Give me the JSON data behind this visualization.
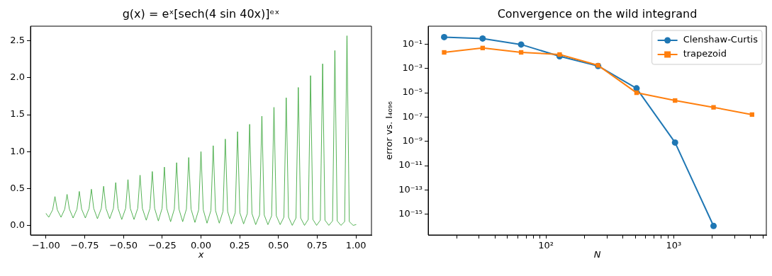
{
  "chart_data": [
    {
      "type": "line",
      "title": "g(x) = eˣ[sech(4 sin 40x)]ᵉˣ",
      "xlabel": "x",
      "xlim": [
        -1.1,
        1.1
      ],
      "ylim": [
        -0.13,
        2.7
      ],
      "xticks": [
        {
          "value": -1,
          "label": "−1.00"
        },
        {
          "value": -0.75,
          "label": "−0.75"
        },
        {
          "value": -0.5,
          "label": "−0.50"
        },
        {
          "value": -0.25,
          "label": "−0.25"
        },
        {
          "value": 0,
          "label": "0.00"
        },
        {
          "value": 0.25,
          "label": "0.25"
        },
        {
          "value": 0.5,
          "label": "0.50"
        },
        {
          "value": 0.75,
          "label": "0.75"
        },
        {
          "value": 1,
          "label": "1.00"
        }
      ],
      "yticks": [
        {
          "value": 0,
          "label": "0.0"
        },
        {
          "value": 0.5,
          "label": "0.5"
        },
        {
          "value": 1,
          "label": "1.0"
        },
        {
          "value": 1.5,
          "label": "1.5"
        },
        {
          "value": 2,
          "label": "2.0"
        },
        {
          "value": 2.5,
          "label": "2.5"
        }
      ],
      "x": [
        -1,
        -0.982,
        -0.957,
        -0.942,
        -0.927,
        -0.903,
        -0.879,
        -0.864,
        -0.849,
        -0.825,
        -0.8,
        -0.785,
        -0.77,
        -0.746,
        -0.722,
        -0.707,
        -0.692,
        -0.668,
        -0.643,
        -0.628,
        -0.613,
        -0.589,
        -0.565,
        -0.55,
        -0.535,
        -0.511,
        -0.486,
        -0.471,
        -0.456,
        -0.432,
        -0.408,
        -0.393,
        -0.378,
        -0.353,
        -0.329,
        -0.314,
        -0.299,
        -0.275,
        -0.251,
        -0.236,
        -0.221,
        -0.196,
        -0.172,
        -0.157,
        -0.142,
        -0.118,
        -0.094,
        -0.079,
        -0.064,
        -0.039,
        -0.015,
        0,
        0.015,
        0.039,
        0.064,
        0.079,
        0.094,
        0.118,
        0.142,
        0.157,
        0.172,
        0.196,
        0.221,
        0.236,
        0.251,
        0.275,
        0.299,
        0.314,
        0.329,
        0.353,
        0.378,
        0.393,
        0.408,
        0.432,
        0.456,
        0.471,
        0.486,
        0.511,
        0.535,
        0.55,
        0.565,
        0.589,
        0.613,
        0.628,
        0.643,
        0.668,
        0.692,
        0.707,
        0.722,
        0.746,
        0.77,
        0.785,
        0.8,
        0.825,
        0.849,
        0.864,
        0.879,
        0.903,
        0.927,
        0.942,
        0.957,
        0.982,
        1
      ],
      "series": [
        {
          "color": "#2ca02c",
          "values": [
            0.16,
            0.11,
            0.21,
            0.39,
            0.21,
            0.11,
            0.22,
            0.42,
            0.22,
            0.1,
            0.22,
            0.46,
            0.22,
            0.1,
            0.23,
            0.49,
            0.23,
            0.09,
            0.23,
            0.53,
            0.23,
            0.09,
            0.23,
            0.58,
            0.23,
            0.08,
            0.23,
            0.62,
            0.23,
            0.08,
            0.23,
            0.68,
            0.23,
            0.07,
            0.23,
            0.73,
            0.23,
            0.06,
            0.23,
            0.79,
            0.23,
            0.05,
            0.22,
            0.85,
            0.22,
            0.05,
            0.22,
            0.92,
            0.22,
            0.04,
            0.21,
            1.0,
            0.21,
            0.03,
            0.2,
            1.08,
            0.2,
            0.03,
            0.19,
            1.17,
            0.19,
            0.02,
            0.17,
            1.27,
            0.17,
            0.02,
            0.16,
            1.37,
            0.16,
            0.01,
            0.14,
            1.48,
            0.14,
            0.01,
            0.13,
            1.6,
            0.13,
            0.01,
            0.11,
            1.73,
            0.11,
            0,
            0.1,
            1.87,
            0.1,
            0,
            0.08,
            2.03,
            0.08,
            0,
            0.07,
            2.19,
            0.07,
            0,
            0.06,
            2.37,
            0.06,
            0,
            0.05,
            2.57,
            0.05,
            0,
            0.01
          ]
        }
      ]
    },
    {
      "type": "line",
      "title": "Convergence on the wild integrand",
      "xlabel": "N",
      "ylabel": "error vs. I₄₀₉₆",
      "log": "xy",
      "legend": "top right",
      "xlim": [
        12,
        5300
      ],
      "ylim": [
        2e-17,
        3
      ],
      "xticks": [
        {
          "value": 20,
          "label": null
        },
        {
          "value": 30,
          "label": null
        },
        {
          "value": 40,
          "label": null
        },
        {
          "value": 50,
          "label": null
        },
        {
          "value": 60,
          "label": null
        },
        {
          "value": 70,
          "label": null
        },
        {
          "value": 80,
          "label": null
        },
        {
          "value": 90,
          "label": null
        },
        {
          "value": 100,
          "label": "10²"
        },
        {
          "value": 200,
          "label": null
        },
        {
          "value": 300,
          "label": null
        },
        {
          "value": 400,
          "label": null
        },
        {
          "value": 500,
          "label": null
        },
        {
          "value": 600,
          "label": null
        },
        {
          "value": 700,
          "label": null
        },
        {
          "value": 800,
          "label": null
        },
        {
          "value": 900,
          "label": null
        },
        {
          "value": 1000,
          "label": "10³"
        },
        {
          "value": 2000,
          "label": null
        },
        {
          "value": 3000,
          "label": null
        },
        {
          "value": 4000,
          "label": null
        },
        {
          "value": 5000,
          "label": null
        }
      ],
      "yticks": [
        {
          "value": 1e-15,
          "label": "10⁻¹⁵"
        },
        {
          "value": 1e-13,
          "label": "10⁻¹³"
        },
        {
          "value": 1e-11,
          "label": "10⁻¹¹"
        },
        {
          "value": 1e-09,
          "label": "10⁻⁹"
        },
        {
          "value": 1e-07,
          "label": "10⁻⁷"
        },
        {
          "value": 1e-05,
          "label": "10⁻⁵"
        },
        {
          "value": 0.001,
          "label": "10⁻³"
        },
        {
          "value": 0.1,
          "label": "10⁻¹"
        }
      ],
      "x": [
        16,
        32,
        64,
        128,
        256,
        512,
        1024,
        2048,
        4096
      ],
      "series": [
        {
          "name": "Clenshaw-Curtis",
          "color": "#1f77b4",
          "marker": "circle",
          "values": [
            0.38,
            0.29,
            0.093,
            0.01,
            0.0016,
            2.3e-05,
            8e-10,
            1.1e-16,
            null
          ]
        },
        {
          "name": "trapezoid",
          "color": "#ff7f0e",
          "marker": "square",
          "values": [
            0.021,
            0.048,
            0.021,
            0.014,
            0.0018,
            1e-05,
            2.3e-06,
            6.3e-07,
            1.6e-07
          ]
        }
      ]
    }
  ]
}
